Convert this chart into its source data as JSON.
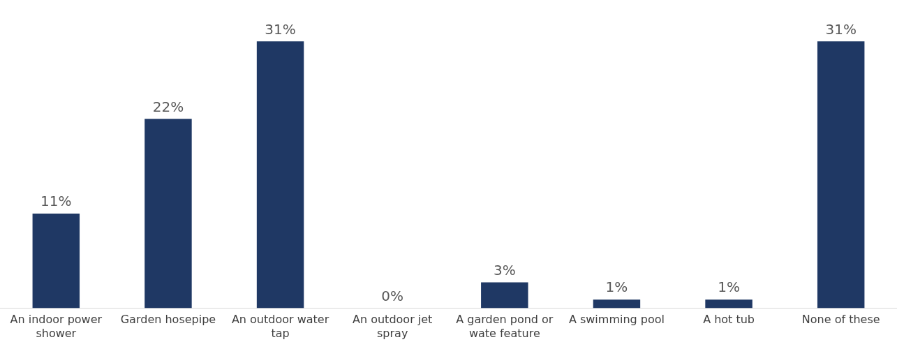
{
  "chart_data": {
    "type": "bar",
    "categories": [
      "An indoor power shower",
      "Garden hosepipe",
      "An outdoor water tap",
      "An outdoor jet spray",
      "A garden pond or wate feature",
      "A swimming pool",
      "A hot tub",
      "None of these"
    ],
    "values": [
      11,
      22,
      31,
      0,
      3,
      1,
      1,
      31
    ],
    "value_labels": [
      "11%",
      "22%",
      "31%",
      "0%",
      "3%",
      "1%",
      "1%",
      "31%"
    ],
    "color": "#1f3864",
    "grid": false,
    "legend": false
  }
}
